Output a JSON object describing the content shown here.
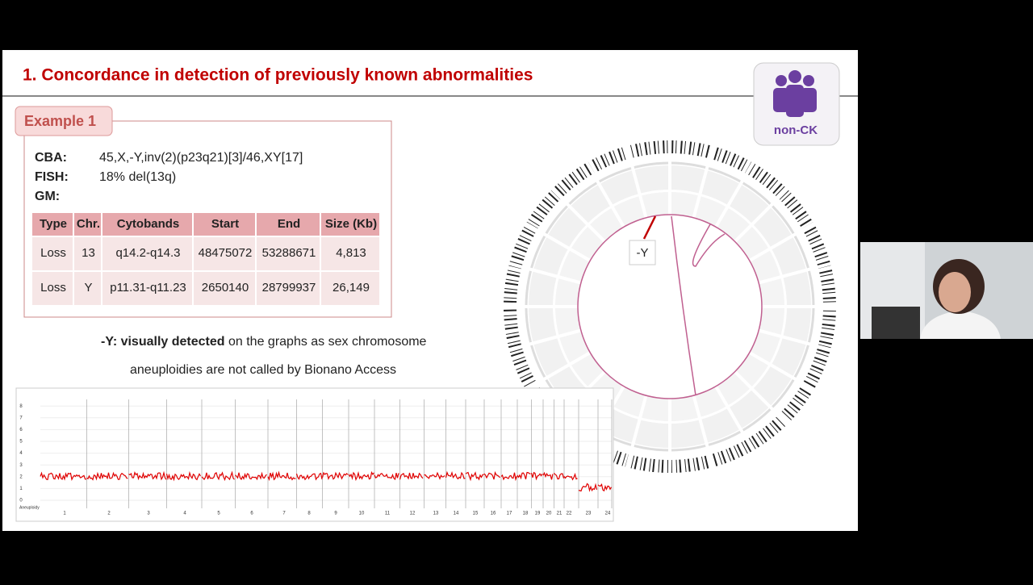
{
  "slide": {
    "title": "1. Concordance in detection of previously known abnormalities",
    "badge": "non-CK",
    "example": "Example 1",
    "findings": [
      {
        "label": "CBA:",
        "value": "45,X,-Y,inv(2)(p23q21)[3]/46,XY[17]"
      },
      {
        "label": "FISH:",
        "value": "18% del(13q)"
      },
      {
        "label": "GM:"
      }
    ],
    "table": {
      "header": [
        "Type",
        "Chr.",
        "Cytobands",
        "Start",
        "End",
        "Size (Kb)"
      ],
      "rows": [
        [
          "Loss",
          "13",
          "q14.2-q14.3",
          "48475072",
          "53288671",
          "4,813"
        ],
        [
          "Loss",
          "Y",
          "p11.31-q11.23",
          "2650140",
          "28799937",
          "26,149"
        ]
      ]
    },
    "note": {
      "bold": "-Y: visually detected",
      "rest": "on the graphs as sex chromosome",
      "line2": "aneuploidies are not called by Bionano Access"
    },
    "circos_label": "-Y",
    "plot": {
      "ylabel": "Aneuploidy",
      "yticks": [
        "0",
        "1",
        "2",
        "3",
        "4",
        "5",
        "6",
        "7",
        "8"
      ],
      "chromosomes": [
        "1",
        "2",
        "3",
        "4",
        "5",
        "6",
        "7",
        "8",
        "9",
        "10",
        "11",
        "12",
        "13",
        "14",
        "15",
        "16",
        "17",
        "18",
        "19",
        "20",
        "21",
        "22",
        "23",
        "24"
      ]
    }
  }
}
